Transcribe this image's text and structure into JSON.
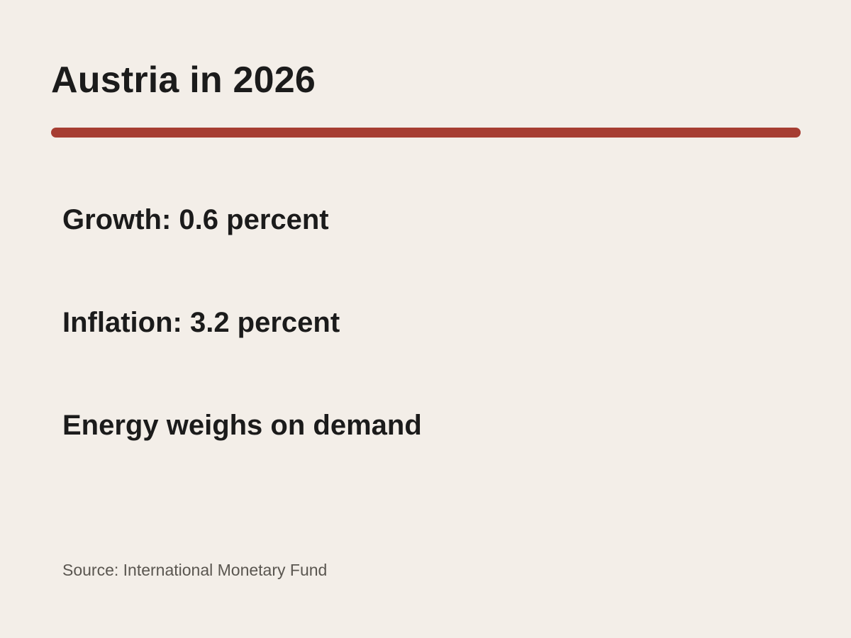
{
  "slide": {
    "title": "Austria in 2026",
    "points": [
      "Growth: 0.6 percent",
      "Inflation: 3.2 percent",
      "Energy weighs on demand"
    ],
    "source": "Source: International Monetary Fund"
  },
  "colors": {
    "background": "#f3eee8",
    "accent_rule": "#a63d32",
    "text": "#1b1b1b",
    "source_text": "#5a5650"
  }
}
